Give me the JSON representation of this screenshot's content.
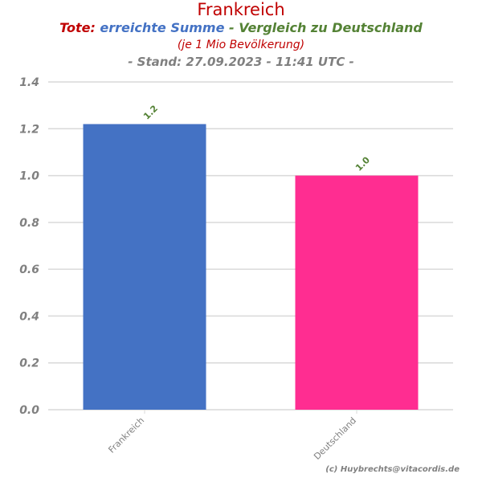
{
  "header": {
    "title": "Frankreich",
    "subtitle_part1": "Tote:",
    "subtitle_part2": "erreichte Summe",
    "subtitle_part3": " - Vergleich zu Deutschland",
    "note": "(je 1 Mio Bevölkerung)",
    "stand": "- Stand: 27.09.2023 - 11:41 UTC -"
  },
  "footer": {
    "copyright": "(c) Huybrechts@vitacordis.de"
  },
  "colors": {
    "title": "#c00000",
    "subtitle_red": "#c00000",
    "subtitle_blue": "#4472c4",
    "subtitle_green": "#548235",
    "stand_gray": "#808080",
    "data_label_green": "#548235",
    "grid": "#d9d9d9",
    "axis_text": "#808080"
  },
  "chart_data": {
    "type": "bar",
    "categories": [
      "Frankreich",
      "Deutschland"
    ],
    "values": [
      1.22,
      1.0
    ],
    "data_labels": [
      "1.2",
      "1.0"
    ],
    "bar_colors": [
      "#4472c4",
      "#ff2d91"
    ],
    "ylim": [
      0,
      1.4
    ],
    "yticks": [
      "0.0",
      "0.2",
      "0.4",
      "0.6",
      "0.8",
      "1.0",
      "1.2",
      "1.4"
    ],
    "grid": true
  }
}
